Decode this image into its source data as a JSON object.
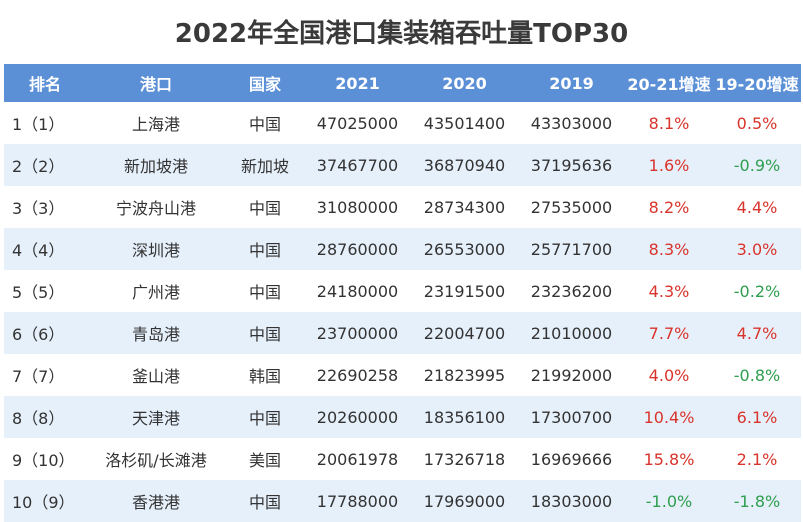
{
  "title": "2022年全国港口集装箱吞吐量TOP30",
  "columns": [
    "排名",
    "港口",
    "国家",
    "2021",
    "2020",
    "2019",
    "20-21增速",
    "19-20增速"
  ],
  "rows": [
    {
      "rank": "1（1）",
      "port": "上海港",
      "country": "中国",
      "y2021": "47025000",
      "y2020": "43501400",
      "y2019": "43303000",
      "g2021": "8.1%",
      "g2020": "0.5%"
    },
    {
      "rank": "2（2）",
      "port": "新加坡港",
      "country": "新加坡",
      "y2021": "37467700",
      "y2020": "36870940",
      "y2019": "37195636",
      "g2021": "1.6%",
      "g2020": "-0.9%"
    },
    {
      "rank": "3（3）",
      "port": "宁波舟山港",
      "country": "中国",
      "y2021": "31080000",
      "y2020": "28734300",
      "y2019": "27535000",
      "g2021": "8.2%",
      "g2020": "4.4%"
    },
    {
      "rank": "4（4）",
      "port": "深圳港",
      "country": "中国",
      "y2021": "28760000",
      "y2020": "26553000",
      "y2019": "25771700",
      "g2021": "8.3%",
      "g2020": "3.0%"
    },
    {
      "rank": "5（5）",
      "port": "广州港",
      "country": "中国",
      "y2021": "24180000",
      "y2020": "23191500",
      "y2019": "23236200",
      "g2021": "4.3%",
      "g2020": "-0.2%"
    },
    {
      "rank": "6（6）",
      "port": "青岛港",
      "country": "中国",
      "y2021": "23700000",
      "y2020": "22004700",
      "y2019": "21010000",
      "g2021": "7.7%",
      "g2020": "4.7%"
    },
    {
      "rank": "7（7）",
      "port": "釜山港",
      "country": "韩国",
      "y2021": "22690258",
      "y2020": "21823995",
      "y2019": "21992000",
      "g2021": "4.0%",
      "g2020": "-0.8%"
    },
    {
      "rank": "8（8）",
      "port": "天津港",
      "country": "中国",
      "y2021": "20260000",
      "y2020": "18356100",
      "y2019": "17300700",
      "g2021": "10.4%",
      "g2020": "6.1%"
    },
    {
      "rank": "9（10）",
      "port": "洛杉矶/长滩港",
      "country": "美国",
      "y2021": "20061978",
      "y2020": "17326718",
      "y2019": "16969666",
      "g2021": "15.8%",
      "g2020": "2.1%"
    },
    {
      "rank": "10（9）",
      "port": "香港港",
      "country": "中国",
      "y2021": "17788000",
      "y2020": "17969000",
      "y2019": "18303000",
      "g2021": "-1.0%",
      "g2020": "-1.8%"
    }
  ],
  "colors": {
    "header_bg": "#5b8fd6",
    "stripe": "#e6f0fb",
    "positive": "#d9342b",
    "negative": "#2e9e4f"
  }
}
